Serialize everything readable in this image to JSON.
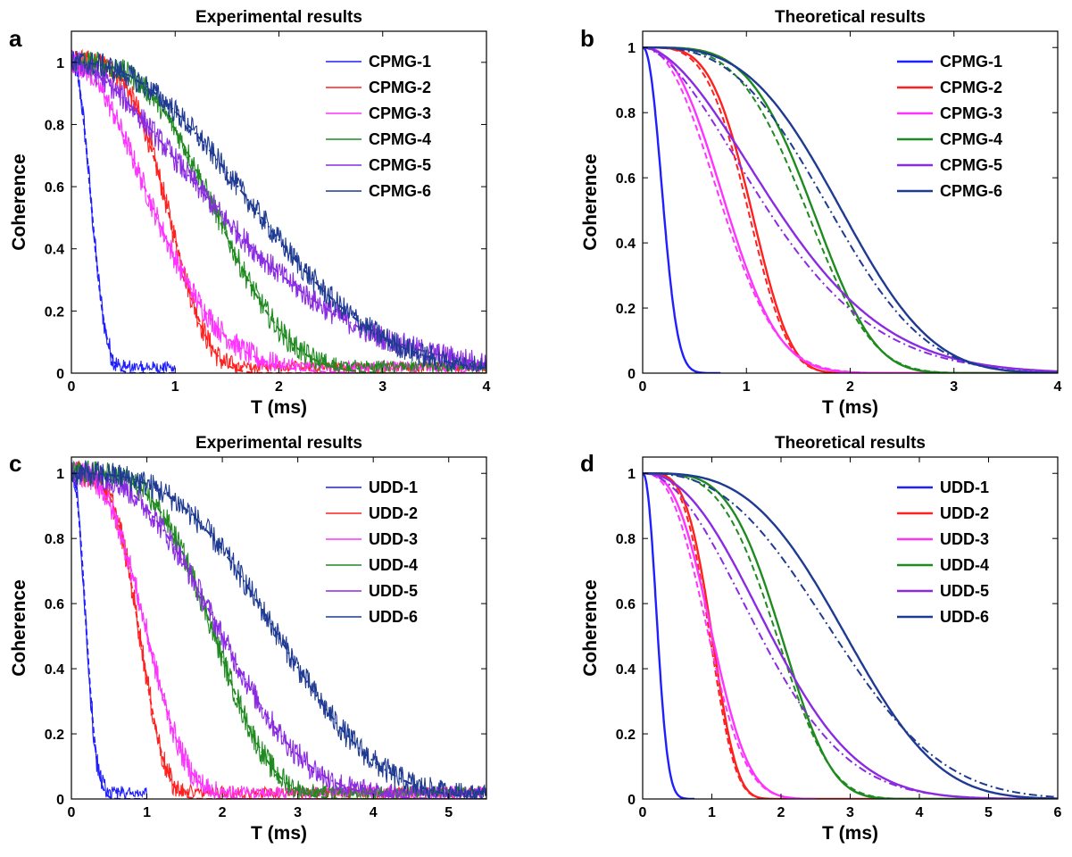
{
  "chart_data": [
    {
      "panel": "a",
      "type": "line",
      "title": "Experimental results",
      "xlabel": "T (ms)",
      "ylabel": "Coherence",
      "xlim": [
        0,
        4
      ],
      "ylim": [
        0,
        1.1
      ],
      "xticks": [
        0,
        1,
        2,
        3,
        4
      ],
      "yticks": [
        0,
        0.2,
        0.4,
        0.6,
        0.8,
        1
      ],
      "noisy": true,
      "legend_position": "top-right",
      "series": [
        {
          "name": "CPMG-1",
          "color": "#1f1fff",
          "tmax": 1.0,
          "fits": [
            {
              "T2": 0.24,
              "p": 2.2,
              "style": "dash",
              "color": "#1f1fff"
            }
          ]
        },
        {
          "name": "CPMG-2",
          "color": "#ff2020",
          "tmax": 4.0,
          "fits": [
            {
              "T2": 1.05,
              "p": 3.6,
              "style": "dash",
              "color": "#ff2020"
            }
          ]
        },
        {
          "name": "CPMG-3",
          "color": "#ff33ff",
          "tmax": 4.0,
          "fits": [
            {
              "T2": 1.0,
              "p": 1.9,
              "style": "dash",
              "color": "#ff33ff"
            }
          ]
        },
        {
          "name": "CPMG-4",
          "color": "#1f8a1f",
          "tmax": 4.0,
          "fits": [
            {
              "T2": 1.6,
              "p": 3.0,
              "style": "dash",
              "color": "#1f8a1f"
            }
          ]
        },
        {
          "name": "CPMG-5",
          "color": "#8a2be2",
          "tmax": 4.0,
          "fits": [
            {
              "T2": 1.85,
              "p": 1.6,
              "style": "dashdot",
              "color": "#8a2be2"
            }
          ]
        },
        {
          "name": "CPMG-6",
          "color": "#1f3a93",
          "tmax": 4.0,
          "fits": [
            {
              "T2": 2.15,
              "p": 2.3,
              "style": "dashdot",
              "color": "#1f3a93"
            }
          ]
        }
      ]
    },
    {
      "panel": "b",
      "type": "line",
      "title": "Theoretical results",
      "xlabel": "T (ms)",
      "ylabel": "Coherence",
      "xlim": [
        0,
        4
      ],
      "ylim": [
        0,
        1.05
      ],
      "xticks": [
        0,
        1,
        2,
        3,
        4
      ],
      "yticks": [
        0,
        0.2,
        0.4,
        0.6,
        0.8,
        1
      ],
      "noisy": false,
      "legend_position": "top-right",
      "series": [
        {
          "name": "CPMG-1",
          "color": "#1f1fff",
          "tmax": 0.75,
          "T2": 0.24,
          "p": 2.2
        },
        {
          "name": "CPMG-2",
          "color": "#ff2020",
          "tmax": 4.0,
          "T2": 1.15,
          "p": 4.0,
          "fits": [
            {
              "T2": 1.12,
              "p": 3.8,
              "style": "dash",
              "color": "#ff2020"
            }
          ]
        },
        {
          "name": "CPMG-3",
          "color": "#ff33ff",
          "tmax": 4.0,
          "T2": 0.95,
          "p": 2.4,
          "fits": [
            {
              "T2": 0.92,
              "p": 2.2,
              "style": "dash",
              "color": "#ff33ff"
            }
          ]
        },
        {
          "name": "CPMG-4",
          "color": "#1f8a1f",
          "tmax": 4.0,
          "T2": 1.8,
          "p": 4.0,
          "fits": [
            {
              "T2": 1.75,
              "p": 3.6,
              "style": "dash",
              "color": "#1f8a1f"
            }
          ]
        },
        {
          "name": "CPMG-5",
          "color": "#8a2be2",
          "tmax": 4.0,
          "T2": 1.6,
          "p": 1.8,
          "fits": [
            {
              "T2": 1.5,
              "p": 1.7,
              "style": "dashdot",
              "color": "#8a2be2"
            }
          ]
        },
        {
          "name": "CPMG-6",
          "color": "#1f3a93",
          "tmax": 4.0,
          "T2": 2.15,
          "p": 3.2,
          "fits": [
            {
              "T2": 2.05,
              "p": 2.9,
              "style": "dashdot",
              "color": "#1f3a93"
            }
          ]
        }
      ]
    },
    {
      "panel": "c",
      "type": "line",
      "title": "Experimental results",
      "xlabel": "T (ms)",
      "ylabel": "Coherence",
      "xlim": [
        0,
        5.5
      ],
      "ylim": [
        0,
        1.05
      ],
      "xticks": [
        0,
        1,
        2,
        3,
        4,
        5
      ],
      "yticks": [
        0,
        0.2,
        0.4,
        0.6,
        0.8,
        1
      ],
      "noisy": true,
      "legend_position": "top-right",
      "series": [
        {
          "name": "UDD-1",
          "color": "#1f1fff",
          "tmax": 1.0,
          "fits": [
            {
              "T2": 0.24,
              "p": 2.2,
              "style": "dash",
              "color": "#1f1fff"
            }
          ]
        },
        {
          "name": "UDD-2",
          "color": "#ff2020",
          "tmax": 5.5,
          "fits": [
            {
              "T2": 1.0,
              "p": 3.8,
              "style": "dash",
              "color": "#ff2020"
            }
          ]
        },
        {
          "name": "UDD-3",
          "color": "#ff33ff",
          "tmax": 5.5,
          "fits": [
            {
              "T2": 1.15,
              "p": 2.8,
              "style": "dash",
              "color": "#ff33ff"
            }
          ]
        },
        {
          "name": "UDD-4",
          "color": "#1f8a1f",
          "tmax": 5.5,
          "fits": [
            {
              "T2": 2.1,
              "p": 3.6,
              "style": "dash",
              "color": "#1f8a1f"
            }
          ]
        },
        {
          "name": "UDD-5",
          "color": "#8a2be2",
          "tmax": 5.5,
          "fits": [
            {
              "T2": 2.3,
              "p": 2.6,
              "style": "dashdot",
              "color": "#8a2be2"
            }
          ]
        },
        {
          "name": "UDD-6",
          "color": "#1f3a93",
          "tmax": 5.5,
          "fits": [
            {
              "T2": 3.1,
              "p": 3.0,
              "style": "dashdot",
              "color": "#1f3a93"
            }
          ]
        }
      ]
    },
    {
      "panel": "d",
      "type": "line",
      "title": "Theoretical results",
      "xlabel": "T (ms)",
      "ylabel": "Coherence",
      "xlim": [
        0,
        6
      ],
      "ylim": [
        0,
        1.05
      ],
      "xticks": [
        0,
        1,
        2,
        3,
        4,
        5,
        6
      ],
      "yticks": [
        0,
        0.2,
        0.4,
        0.6,
        0.8,
        1
      ],
      "noisy": false,
      "legend_position": "top-right",
      "series": [
        {
          "name": "UDD-1",
          "color": "#1f1fff",
          "tmax": 0.75,
          "T2": 0.26,
          "p": 2.2
        },
        {
          "name": "UDD-2",
          "color": "#ff2020",
          "tmax": 6.0,
          "T2": 1.1,
          "p": 4.0,
          "fits": [
            {
              "T2": 1.07,
              "p": 3.8,
              "style": "dash",
              "color": "#ff2020"
            }
          ]
        },
        {
          "name": "UDD-3",
          "color": "#ff33ff",
          "tmax": 2.5,
          "T2": 1.15,
          "p": 2.8,
          "fits": [
            {
              "T2": 1.1,
              "p": 2.6,
              "style": "dash",
              "color": "#ff33ff"
            }
          ]
        },
        {
          "name": "UDD-4",
          "color": "#1f8a1f",
          "tmax": 6.0,
          "T2": 2.2,
          "p": 4.0,
          "fits": [
            {
              "T2": 2.15,
              "p": 3.6,
              "style": "dash",
              "color": "#1f8a1f"
            }
          ]
        },
        {
          "name": "UDD-5",
          "color": "#8a2be2",
          "tmax": 6.0,
          "T2": 2.2,
          "p": 2.2,
          "fits": [
            {
              "T2": 2.05,
              "p": 2.0,
              "style": "dashdot",
              "color": "#8a2be2"
            }
          ]
        },
        {
          "name": "UDD-6",
          "color": "#1f3a93",
          "tmax": 6.0,
          "T2": 3.3,
          "p": 3.2,
          "fits": [
            {
              "T2": 3.2,
              "p": 2.6,
              "style": "dashdot",
              "color": "#1f3a93"
            }
          ]
        }
      ]
    }
  ]
}
